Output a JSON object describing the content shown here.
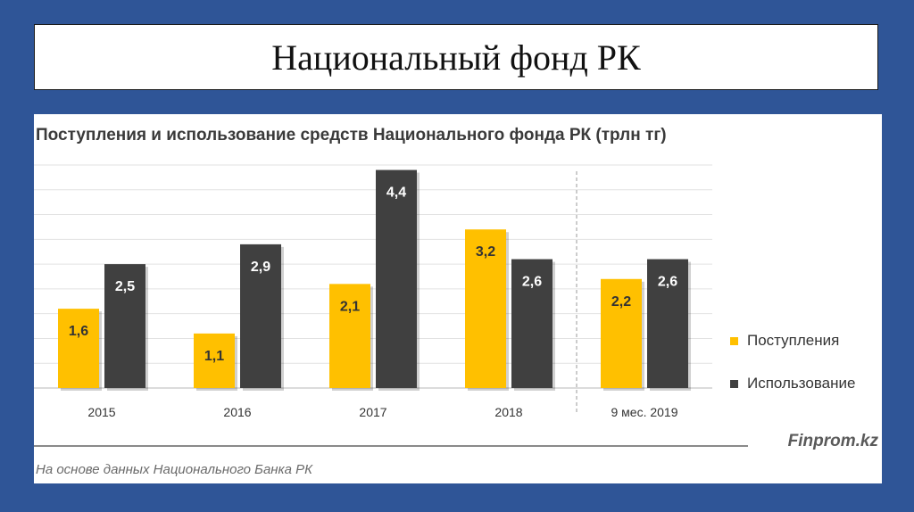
{
  "slide": {
    "title": "Национальный фонд РК",
    "subtitle": "Поступления и использование средств  Национального  фонда РК (трлн тг)",
    "brand": "Finprom.kz",
    "source": "На основе данных  Национального  Банка РК"
  },
  "colors": {
    "background": "#2f5597",
    "income": "#ffc000",
    "usage": "#404040"
  },
  "chart_data": {
    "type": "bar",
    "title": "Поступления и использование средств  Национального  фонда РК (трлн тг)",
    "categories": [
      "2015",
      "2016",
      "2017",
      "2018",
      "9 мес. 2019"
    ],
    "series": [
      {
        "name": "Поступления",
        "values": [
          1.6,
          1.1,
          2.1,
          3.2,
          2.2
        ],
        "labels": [
          "1,6",
          "1,1",
          "2,1",
          "3,2",
          "2,2"
        ],
        "color": "#ffc000"
      },
      {
        "name": "Использование",
        "values": [
          2.5,
          2.9,
          4.4,
          2.6,
          2.6
        ],
        "labels": [
          "2,5",
          "2,9",
          "4,4",
          "2,6",
          "2,6"
        ],
        "color": "#404040"
      }
    ],
    "ylim": [
      0,
      4.5
    ],
    "grid": true,
    "xlabel": "",
    "ylabel": "",
    "legend_position": "right",
    "separator_before_category": "9 мес. 2019"
  }
}
